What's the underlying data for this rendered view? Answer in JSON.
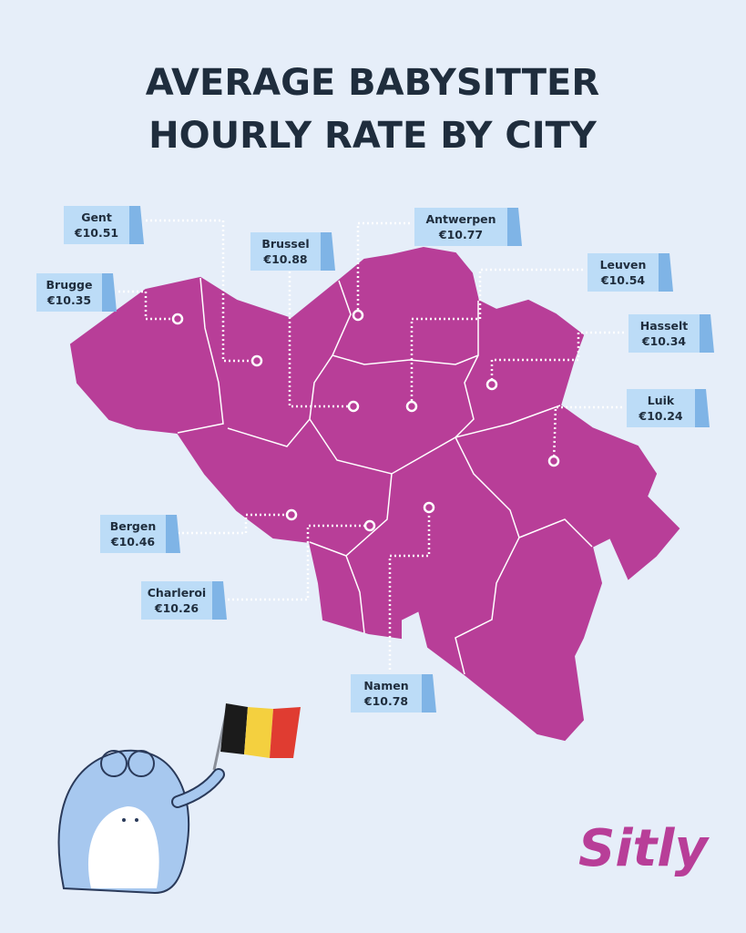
{
  "title": [
    "AVERAGE BABYSITTER",
    "HOURLY RATE BY CITY"
  ],
  "cities": [
    {
      "name": "Gent",
      "price": "€10.51"
    },
    {
      "name": "Brugge",
      "price": "€10.35"
    },
    {
      "name": "Brussel",
      "price": "€10.88"
    },
    {
      "name": "Antwerpen",
      "price": "€10.77"
    },
    {
      "name": "Leuven",
      "price": "€10.54"
    },
    {
      "name": "Hasselt",
      "price": "€10.34"
    },
    {
      "name": "Luik",
      "price": "€10.24"
    },
    {
      "name": "Bergen",
      "price": "€10.46"
    },
    {
      "name": "Charleroi",
      "price": "€10.26"
    },
    {
      "name": "Namen",
      "price": "€10.78"
    }
  ],
  "brand": "Sitly"
}
